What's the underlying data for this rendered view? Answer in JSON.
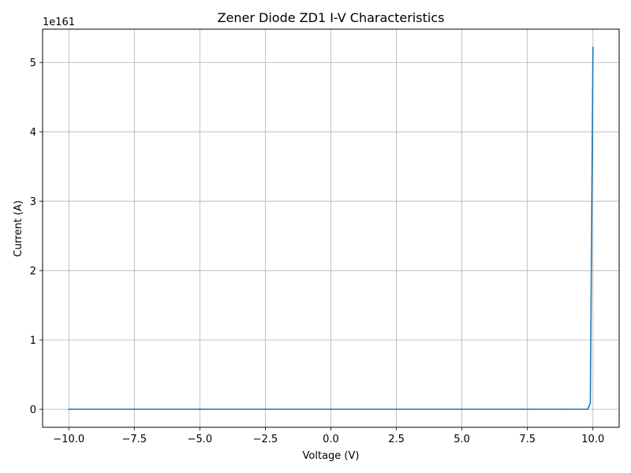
{
  "chart_data": {
    "type": "line",
    "title": "Zener Diode ZD1 I-V Characteristics",
    "xlabel": "Voltage (V)",
    "ylabel": "Current (A)",
    "y_offset_label": "1e161",
    "y_scale_exponent": 161,
    "xlim": [
      -11.0,
      11.0
    ],
    "ylim": [
      -0.26,
      5.48
    ],
    "grid": true,
    "legend": "none",
    "x_ticks": [
      -10.0,
      -7.5,
      -5.0,
      -2.5,
      0.0,
      2.5,
      5.0,
      7.5,
      10.0
    ],
    "x_tick_labels": [
      "−10.0",
      "−7.5",
      "−5.0",
      "−2.5",
      "0.0",
      "2.5",
      "5.0",
      "7.5",
      "10.0"
    ],
    "y_ticks": [
      0,
      1,
      2,
      3,
      4,
      5
    ],
    "y_tick_labels": [
      "0",
      "1",
      "2",
      "3",
      "4",
      "5"
    ],
    "series": [
      {
        "color": "#1f77b4",
        "x": [
          -10.0,
          -5.0,
          0.0,
          5.0,
          9.0,
          9.8,
          9.9,
          10.0
        ],
        "y": [
          0.0,
          0.0,
          0.0,
          0.0,
          0.0,
          0.0,
          0.09,
          5.22
        ]
      }
    ]
  }
}
